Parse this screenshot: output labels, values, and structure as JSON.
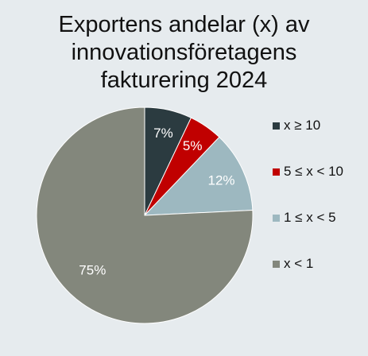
{
  "chart_data": {
    "type": "pie",
    "title_lines": [
      "Exportens andelar (x) av",
      "innovationsföretagens",
      "fakturering 2024"
    ],
    "legend_position": "right",
    "slices": [
      {
        "label": "x ≥ 10",
        "value": 7,
        "data_label": "7%",
        "color": "#2b3b40",
        "label_color": "#ffffff"
      },
      {
        "label": "5 ≤ x < 10",
        "value": 5,
        "data_label": "5%",
        "color": "#c00000",
        "label_color": "#ffffff"
      },
      {
        "label": "1 ≤ x < 5",
        "value": 12,
        "data_label": "12%",
        "color": "#9db8c0",
        "label_color": "#ffffff"
      },
      {
        "label": "x < 1",
        "value": 75,
        "data_label": "75%",
        "color": "#83877c",
        "label_color": "#ffffff"
      }
    ]
  }
}
